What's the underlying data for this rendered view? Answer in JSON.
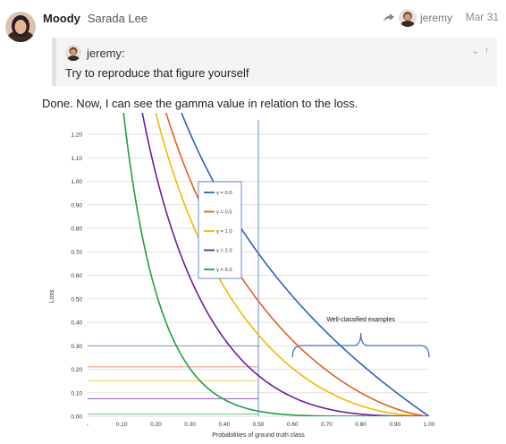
{
  "post": {
    "username": "Moody",
    "full_name": "Sarada Lee",
    "reply_to_user": "jeremy",
    "date": "Mar 31",
    "quote": {
      "author": "jeremy:",
      "text": "Try to reproduce that figure yourself",
      "controls": "⌄ ↑"
    },
    "body": "Done. Now, I can see the gamma value in relation to the loss."
  },
  "icons": {
    "reply": "share-arrow-icon",
    "expand": "chevron-down-icon",
    "up": "arrow-up-icon"
  },
  "colors": {
    "gamma0": "#3060c0",
    "gamma05": "#e06020",
    "gamma1": "#f5b800",
    "gamma2": "#6a1fa0",
    "gamma5": "#20a040",
    "marker": "#4a72c8"
  },
  "chart_data": {
    "type": "line",
    "xlabel": "Probabilities of ground truth class",
    "ylabel": "Loss",
    "xlim": [
      0,
      1
    ],
    "ylim": [
      0,
      1.2
    ],
    "x_ticks": [
      "-",
      "0.10",
      "0.20",
      "0.30",
      "0.40",
      "0.50",
      "0.60",
      "0.70",
      "0.80",
      "0.90",
      "1.00"
    ],
    "y_ticks": [
      "0.00",
      "0.10",
      "0.20",
      "0.30",
      "0.40",
      "0.50",
      "0.60",
      "0.70",
      "0.80",
      "0.90",
      "1.00",
      "1.10",
      "1.20"
    ],
    "grid": true,
    "legend_position": "top-center",
    "series": [
      {
        "name": "γ = 0.0",
        "gamma": 0
      },
      {
        "name": "γ = 0.5",
        "gamma": 0.5
      },
      {
        "name": "γ = 1.0",
        "gamma": 1
      },
      {
        "name": "γ = 2.0",
        "gamma": 2
      },
      {
        "name": "γ = 5.0",
        "gamma": 5
      }
    ],
    "reference_x": 0.5,
    "reference_lines_y": [
      0.3,
      0.21,
      0.15,
      0.075,
      0.01
    ],
    "annotation": "Well-classified examples",
    "annotation_range": [
      0.6,
      1.0
    ]
  }
}
